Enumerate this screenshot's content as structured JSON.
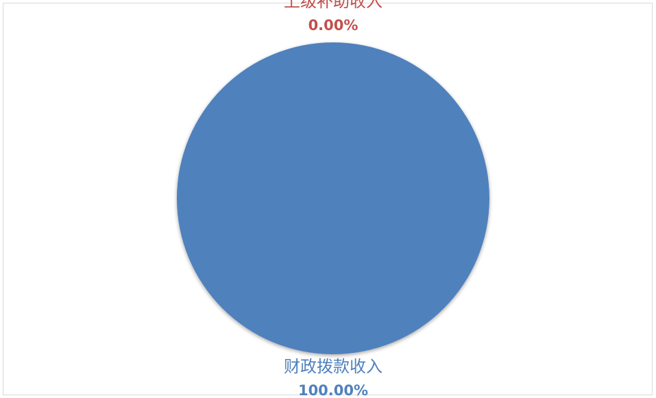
{
  "chart_data": {
    "type": "pie",
    "categories": [
      "上级补助收入",
      "财政拨款收入"
    ],
    "values": [
      0.0,
      100.0
    ],
    "percent_labels": [
      "0.00%",
      "100.00%"
    ],
    "colors": [
      "#c0504d",
      "#4f81bd"
    ],
    "label_colors": [
      "#c0504d",
      "#4f81bd"
    ],
    "title": "",
    "legend": "none"
  }
}
